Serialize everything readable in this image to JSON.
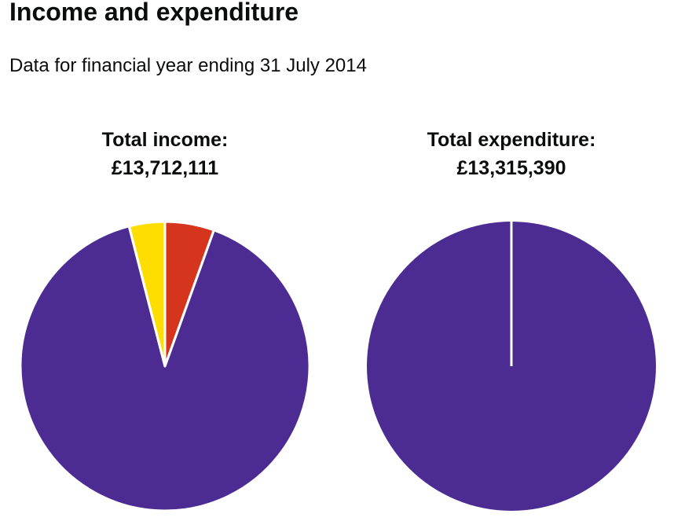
{
  "page": {
    "title": "Income and expenditure",
    "subtitle": "Data for financial year ending 31 July 2014"
  },
  "colors": {
    "purple": "#4c2c92",
    "red": "#d4351c",
    "yellow": "#ffdd00",
    "separator": "#ffffff"
  },
  "chart_data": [
    {
      "type": "pie",
      "title": "Total income:",
      "total": "£13,712,111",
      "slices": [
        {
          "value": 5.5,
          "color": "#d4351c"
        },
        {
          "value": 90.5,
          "color": "#4c2c92"
        },
        {
          "value": 4.0,
          "color": "#ffdd00"
        }
      ]
    },
    {
      "type": "pie",
      "title": "Total expenditure:",
      "total": "£13,315,390",
      "slices": [
        {
          "value": 100,
          "color": "#4c2c92"
        }
      ]
    }
  ]
}
